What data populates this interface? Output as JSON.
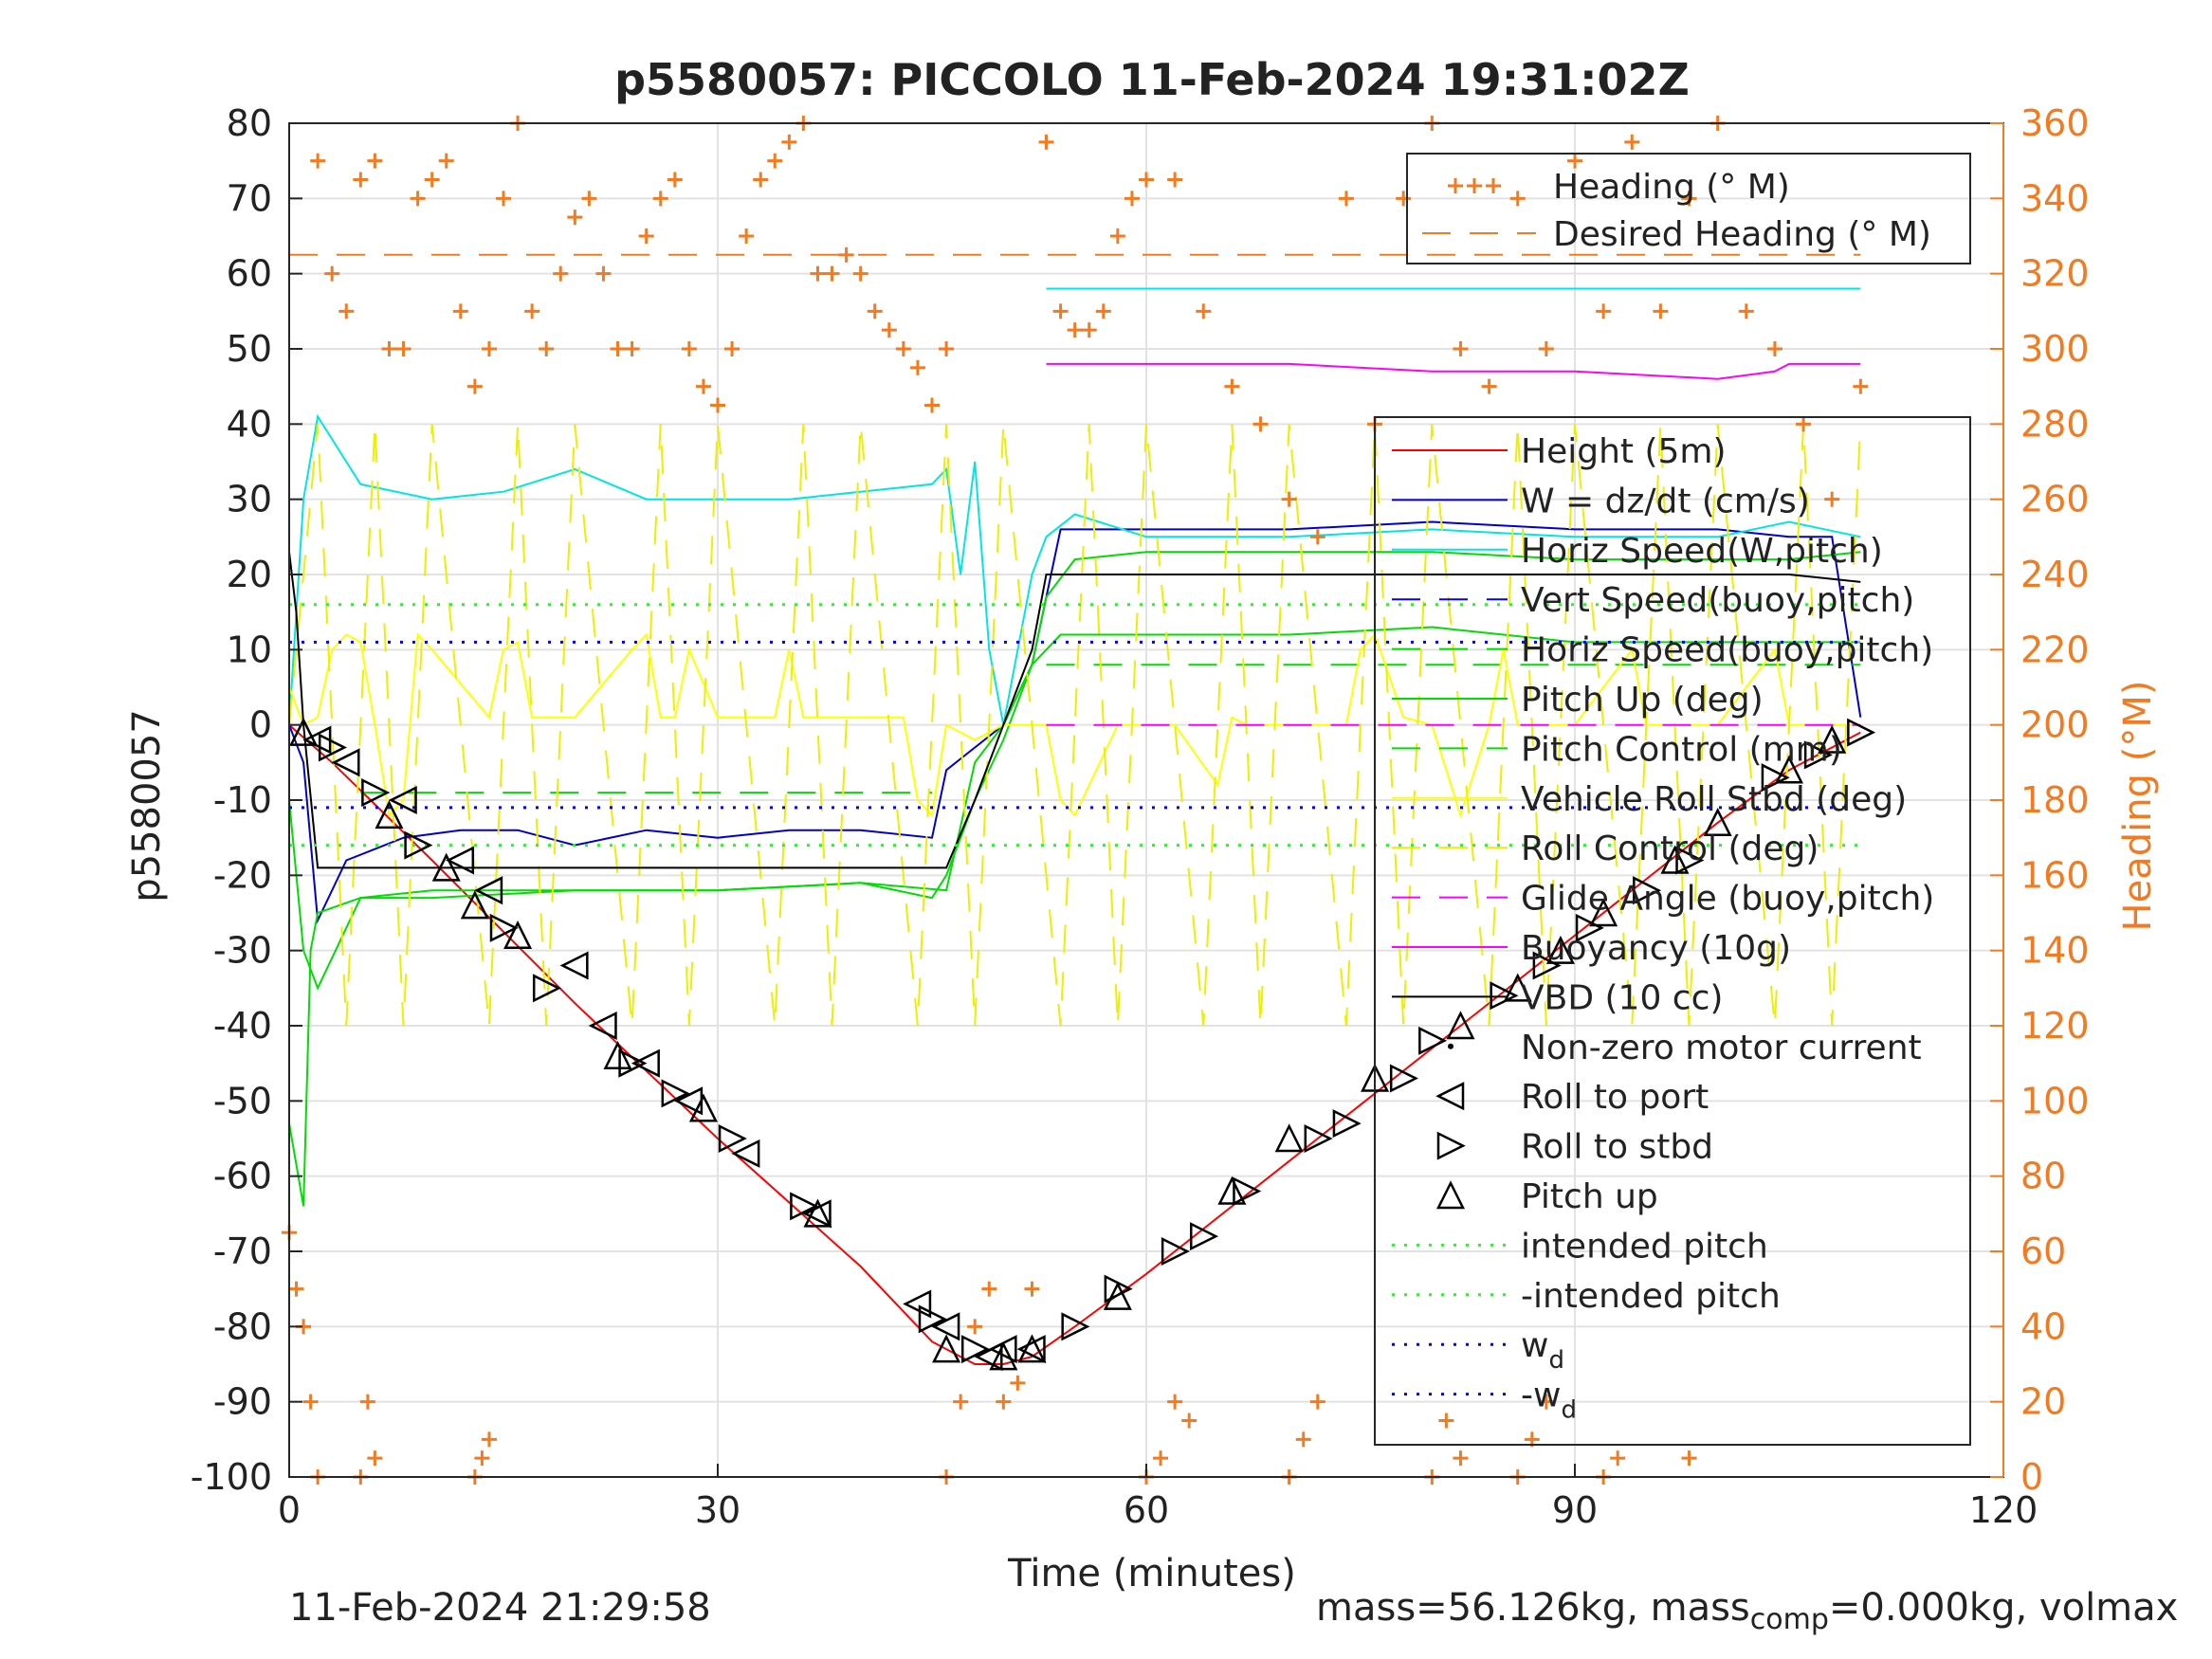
{
  "chart_data": {
    "type": "line",
    "title": "p5580057: PICCOLO 11-Feb-2024 19:31:02Z",
    "xlabel": "Time (minutes)",
    "ylabel": "p5580057",
    "ylabel_right": "Heading (°M)",
    "xlim": [
      0,
      120
    ],
    "ylim": [
      -100,
      80
    ],
    "ylim_right": [
      0,
      360
    ],
    "x_ticks": [
      "0",
      "30",
      "60",
      "90",
      "120"
    ],
    "y_ticks": [
      "80",
      "70",
      "60",
      "50",
      "40",
      "30",
      "20",
      "10",
      "0",
      "-10",
      "-20",
      "-30",
      "-40",
      "-50",
      "-60",
      "-70",
      "-80",
      "-90",
      "-100"
    ],
    "y_ticks_right": [
      "360",
      "340",
      "320",
      "300",
      "280",
      "260",
      "240",
      "220",
      "200",
      "180",
      "160",
      "140",
      "120",
      "100",
      "80",
      "60",
      "40",
      "20",
      "0"
    ],
    "grid": true,
    "colors": {
      "heading": "#f47a20",
      "height": "#ff0000",
      "w": "#0000cc",
      "horiz_w": "#00e5e5",
      "vert_buoy": "#0000ff",
      "horiz_buoy": "#00dd00",
      "pitch": "#00dd00",
      "pitch_control": "#00dd00",
      "roll": "#ffff00",
      "roll_control": "#eeee00",
      "glide": "#ff00ff",
      "buoyancy": "#ff00ff",
      "vbd": "#000000"
    },
    "legend_right_axis": {
      "placement": "top-right",
      "entries": [
        "Heading (° M)",
        "Desired Heading (° M)"
      ]
    },
    "legend_left_axis": {
      "placement": "right",
      "entries": [
        "Height (5m)",
        "W = dz/dt (cm/s)",
        "Horiz Speed(W,pitch)",
        "Vert Speed(buoy,pitch)",
        "Horiz Speed(buoy,pitch)",
        "Pitch Up (deg)",
        "Pitch Control (mm)",
        "Vehicle Roll Stbd (deg)",
        "Roll Control (deg)",
        "Glide Angle (buoy,pitch)",
        "Buoyancy (10g)",
        "VBD (10 cc)",
        "Non-zero motor current",
        "Roll to port",
        "Roll to stbd",
        "Pitch up",
        "intended pitch",
        "-intended pitch",
        "w",
        "-w"
      ],
      "subscripts": {
        "18": "d",
        "19": "d"
      }
    },
    "series": [
      {
        "name": "Height (5m)",
        "x": [
          0,
          3,
          10,
          20,
          30,
          40,
          45,
          48,
          50,
          52,
          55,
          60,
          70,
          80,
          90,
          100,
          105,
          110
        ],
        "y": [
          0,
          -5,
          -18,
          -37,
          -55,
          -72,
          -82,
          -85,
          -85,
          -84,
          -80,
          -73,
          -58,
          -43,
          -28,
          -13,
          -6,
          -1
        ]
      },
      {
        "name": "W = dz/dt (cm/s)",
        "x": [
          0,
          1,
          2,
          4,
          8,
          12,
          16,
          20,
          25,
          30,
          35,
          40,
          45,
          46,
          48,
          50,
          52,
          54,
          60,
          70,
          80,
          90,
          100,
          105,
          108,
          110
        ],
        "y": [
          0,
          -5,
          -26,
          -18,
          -15,
          -14,
          -14,
          -16,
          -14,
          -15,
          -14,
          -14,
          -15,
          -6,
          -3,
          0,
          8,
          26,
          26,
          26,
          27,
          26,
          26,
          25,
          25,
          1
        ]
      },
      {
        "name": "Horiz Speed(W,pitch)",
        "x": [
          0,
          1,
          2,
          5,
          10,
          15,
          20,
          25,
          30,
          35,
          40,
          45,
          46,
          47,
          48,
          49,
          50,
          52,
          53,
          55,
          60,
          70,
          80,
          90,
          100,
          105,
          110
        ],
        "y": [
          0,
          30,
          41,
          32,
          30,
          31,
          34,
          30,
          30,
          30,
          31,
          32,
          34,
          20,
          35,
          10,
          0,
          20,
          25,
          28,
          25,
          25,
          26,
          25,
          25,
          27,
          25
        ]
      },
      {
        "name": "Horiz Speed(buoy,pitch)",
        "x": [
          53,
          60,
          70,
          80,
          90,
          100,
          105,
          110
        ],
        "y": [
          58,
          58,
          58,
          58,
          58,
          58,
          58,
          58
        ]
      },
      {
        "name": "Horiz Speed(buoy,pitch)",
        "x": [
          0,
          1,
          2,
          5,
          10,
          20,
          30,
          40,
          46,
          48,
          50,
          52,
          54,
          60,
          70,
          80,
          90,
          100,
          110
        ],
        "y": [
          -10,
          -30,
          -35,
          -23,
          -22,
          -22,
          -22,
          -21,
          -22,
          -5,
          0,
          8,
          12,
          12,
          12,
          13,
          11,
          11,
          11
        ]
      },
      {
        "name": "Pitch Up (deg)",
        "x": [
          0,
          1,
          1.5,
          2,
          5,
          10,
          20,
          30,
          40,
          45,
          46,
          48,
          50,
          52,
          53,
          55,
          60,
          70,
          80,
          90,
          100,
          105,
          110
        ],
        "y": [
          -53,
          -64,
          -30,
          -25,
          -23,
          -23,
          -22,
          -22,
          -21,
          -23,
          -20,
          -10,
          -2,
          8,
          17,
          22,
          23,
          23,
          23,
          22,
          22,
          22,
          23
        ]
      },
      {
        "name": "Pitch Control (mm)",
        "x": [
          5,
          45
        ],
        "y": [
          -9,
          -9
        ]
      },
      {
        "name": "Pitch Control (mm)",
        "x": [
          53,
          110
        ],
        "y": [
          8,
          8
        ]
      },
      {
        "name": "Vehicle Roll Stbd (deg)",
        "x": [
          0,
          1,
          2,
          3,
          4,
          5,
          6,
          7,
          8,
          9,
          10,
          14,
          15,
          16,
          17,
          18,
          20,
          24,
          25,
          26,
          27,
          28,
          30,
          34,
          35,
          36,
          37,
          38,
          40,
          43,
          44,
          45,
          46,
          48,
          50,
          53,
          54,
          55,
          58,
          60,
          62,
          65,
          66,
          67,
          70,
          74,
          75,
          76,
          78,
          80,
          82,
          84,
          85,
          86,
          90,
          94,
          95,
          96,
          100,
          104,
          105,
          106,
          108,
          110
        ],
        "y": [
          5,
          0,
          1,
          10,
          12,
          11,
          0,
          -12,
          -10,
          12,
          10,
          1,
          10,
          11,
          1,
          1,
          1,
          10,
          12,
          1,
          1,
          10,
          1,
          1,
          10,
          1,
          1,
          1,
          1,
          1,
          -10,
          -12,
          0,
          -2,
          0,
          0,
          -10,
          -12,
          0,
          0,
          0,
          -8,
          1,
          0,
          0,
          0,
          10,
          12,
          1,
          0,
          -12,
          0,
          10,
          0,
          0,
          10,
          0,
          0,
          0,
          10,
          0,
          0,
          0,
          0
        ]
      },
      {
        "name": "Roll Control (deg)",
        "x": [
          0,
          2,
          4,
          6,
          8,
          10,
          14,
          16,
          18,
          20,
          24,
          26,
          28,
          30,
          34,
          36,
          38,
          40,
          44,
          46,
          48,
          50,
          54,
          56,
          58,
          60,
          64,
          66,
          68,
          70,
          74,
          76,
          78,
          80,
          84,
          86,
          88,
          90,
          94,
          96,
          98,
          100,
          104,
          106,
          108,
          110
        ],
        "y": [
          0,
          40,
          -40,
          40,
          -40,
          40,
          -40,
          40,
          -40,
          40,
          -40,
          40,
          -40,
          40,
          -40,
          40,
          -40,
          40,
          -40,
          40,
          -40,
          40,
          -40,
          40,
          -40,
          40,
          -40,
          40,
          -40,
          40,
          -40,
          40,
          -40,
          40,
          -40,
          40,
          -40,
          40,
          -40,
          40,
          -40,
          40,
          -40,
          40,
          -40,
          40
        ]
      },
      {
        "name": "Glide Angle (buoy,pitch)",
        "x": [
          53,
          110
        ],
        "y": [
          0,
          0
        ]
      },
      {
        "name": "Buoyancy (10g)",
        "x": [
          53,
          60,
          70,
          80,
          90,
          100,
          104,
          105,
          108,
          110
        ],
        "y": [
          48,
          48,
          48,
          47,
          47,
          46,
          47,
          48,
          48,
          48
        ]
      },
      {
        "name": "VBD (10 cc)",
        "x": [
          0,
          0.5,
          1,
          2,
          5,
          10,
          20,
          30,
          40,
          46,
          48,
          50,
          52,
          53,
          60,
          70,
          80,
          90,
          100,
          105,
          110
        ],
        "y": [
          23,
          15,
          0,
          -19,
          -19,
          -19,
          -19,
          -19,
          -19,
          -19,
          -10,
          0,
          10,
          20,
          20,
          20,
          20,
          20,
          20,
          20,
          19
        ]
      },
      {
        "name": "intended pitch",
        "x": [
          0,
          110
        ],
        "y": [
          16,
          16
        ]
      },
      {
        "name": "-intended pitch",
        "x": [
          0,
          110
        ],
        "y": [
          -16,
          -16
        ]
      },
      {
        "name": "w",
        "x": [
          0,
          110
        ],
        "y": [
          11,
          11
        ]
      },
      {
        "name": "-w",
        "x": [
          0,
          110
        ],
        "y": [
          -11,
          -11
        ]
      },
      {
        "name": "Heading (° M)",
        "axis": "right",
        "x": [
          2,
          3,
          4,
          5,
          6,
          7,
          8,
          9,
          10,
          11,
          12,
          13,
          14,
          15,
          16,
          17,
          18,
          19,
          20,
          21,
          22,
          23,
          24,
          25,
          26,
          27,
          28,
          29,
          30,
          31,
          32,
          33,
          34,
          35,
          36,
          37,
          38,
          39,
          40,
          41,
          42,
          43,
          44,
          45,
          46,
          53,
          54,
          55,
          56,
          57,
          58,
          59,
          60,
          62,
          64,
          66,
          68,
          70,
          72,
          74,
          76,
          78,
          80,
          82,
          84,
          86,
          88,
          90,
          92,
          94,
          96,
          98,
          100,
          102,
          104,
          106,
          108,
          110
        ],
        "y": [
          350,
          320,
          310,
          345,
          350,
          300,
          300,
          340,
          345,
          350,
          310,
          290,
          300,
          340,
          360,
          310,
          300,
          320,
          335,
          340,
          320,
          300,
          300,
          330,
          340,
          345,
          300,
          290,
          285,
          300,
          330,
          345,
          350,
          355,
          360,
          320,
          320,
          325,
          320,
          310,
          305,
          300,
          295,
          285,
          300,
          355,
          310,
          305,
          305,
          310,
          330,
          340,
          345,
          345,
          310,
          290,
          280,
          260,
          250,
          340,
          280,
          340,
          360,
          300,
          290,
          340,
          300,
          350,
          310,
          355,
          310,
          340,
          360,
          310,
          300,
          280,
          260,
          290
        ]
      },
      {
        "name": "Heading (° M)",
        "axis": "right",
        "x": [
          0,
          0.5,
          1,
          1.5,
          2,
          5,
          5.5,
          6,
          13,
          13.5,
          14,
          46,
          47,
          48,
          49,
          50,
          51,
          52,
          60,
          61,
          62,
          63,
          70,
          71,
          72,
          80,
          81,
          82,
          86,
          87,
          88,
          92,
          93,
          98
        ],
        "y": [
          65,
          50,
          40,
          20,
          0,
          0,
          20,
          5,
          0,
          5,
          10,
          0,
          20,
          40,
          50,
          20,
          25,
          50,
          0,
          5,
          20,
          15,
          0,
          10,
          20,
          0,
          15,
          5,
          0,
          10,
          20,
          0,
          5,
          5
        ]
      },
      {
        "name": "Desired Heading (° M)",
        "axis": "right",
        "x": [
          0,
          110
        ],
        "y": [
          325,
          325
        ]
      }
    ],
    "markers": {
      "roll_to_port": {
        "x": [
          2,
          4,
          8,
          12,
          14,
          20,
          22,
          25,
          28,
          32,
          37,
          44,
          46,
          49,
          50,
          52
        ],
        "y": [
          -2,
          -5,
          -10,
          -18,
          -22,
          -32,
          -40,
          -45,
          -50,
          -57,
          -65,
          -77,
          -80,
          -84,
          -83,
          -83
        ]
      },
      "roll_to_stbd": {
        "x": [
          3,
          6,
          9,
          15,
          18,
          24,
          27,
          31,
          36,
          45,
          48,
          55,
          58,
          62,
          64,
          67,
          72,
          74,
          78,
          80,
          85,
          88,
          91,
          95,
          98,
          104,
          107,
          110
        ],
        "y": [
          -3,
          -9,
          -16,
          -27,
          -35,
          -45,
          -49,
          -55,
          -64,
          -79,
          -83,
          -80,
          -75,
          -70,
          -68,
          -62,
          -55,
          -53,
          -47,
          -42,
          -36,
          -32,
          -27,
          -22,
          -18,
          -7,
          -4,
          -1
        ]
      },
      "pitch_up": {
        "x": [
          1,
          7,
          11,
          13,
          16,
          23,
          29,
          37,
          46,
          50,
          52,
          58,
          66,
          70,
          76,
          82,
          86,
          89,
          92,
          97,
          100,
          105,
          108
        ],
        "y": [
          -1,
          -12,
          -19,
          -24,
          -28,
          -44,
          -51,
          -65,
          -83,
          -84,
          -83,
          -76,
          -62,
          -55,
          -47,
          -40,
          -35,
          -30,
          -25,
          -18,
          -13,
          -6,
          -2
        ]
      }
    }
  },
  "footer": {
    "timestamp": "11-Feb-2024 21:29:58",
    "mass_text_1": "mass=56.126kg, mass",
    "mass_sub": "comp",
    "mass_text_2": "=0.000kg, volmax"
  }
}
